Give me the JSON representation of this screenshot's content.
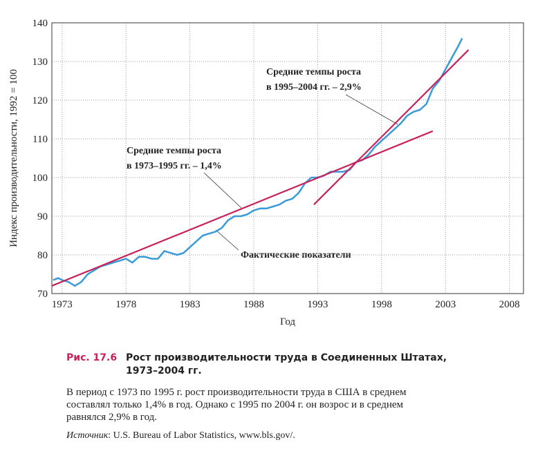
{
  "chart_data": {
    "type": "line",
    "ylabel": "Индекс производительности, 1992 = 100",
    "xlabel": "Год",
    "xlim": [
      1972.2,
      2009.1
    ],
    "xticks": [
      1973,
      1978,
      1983,
      1988,
      1993,
      1998,
      2003,
      2008
    ],
    "ylim": [
      70,
      140
    ],
    "yticks": [
      70,
      80,
      90,
      100,
      110,
      120,
      130,
      140
    ],
    "grid": true,
    "series": [
      {
        "color": "#3a9ad9",
        "x": [
          1972.3,
          1972.7,
          1973,
          1973.5,
          1974,
          1974.5,
          1975,
          1975.5,
          1976,
          1976.5,
          1977,
          1977.5,
          1978,
          1978.5,
          1979,
          1979.5,
          1980,
          1980.5,
          1981,
          1981.5,
          1982,
          1982.5,
          1983,
          1983.5,
          1984,
          1984.5,
          1985,
          1985.5,
          1986,
          1986.5,
          1987,
          1987.5,
          1988,
          1988.5,
          1989,
          1989.5,
          1990,
          1990.5,
          1991,
          1991.5,
          1992,
          1992.5,
          1993,
          1993.5,
          1994,
          1994.5,
          1995,
          1995.5,
          1996,
          1996.5,
          1997,
          1997.5,
          1998,
          1998.5,
          1999,
          1999.5,
          2000,
          2000.5,
          2001,
          2001.5,
          2002,
          2002.5,
          2003,
          2003.5,
          2004,
          2004.3
        ],
        "values": [
          73.5,
          74,
          73.5,
          73,
          72,
          73,
          75,
          76,
          77,
          77.5,
          78,
          78.5,
          79,
          78,
          79.5,
          79.5,
          79,
          79,
          81,
          80.5,
          80,
          80.5,
          82,
          83.5,
          85,
          85.5,
          86,
          87,
          89,
          90,
          90,
          90.5,
          91.5,
          92,
          92,
          92.5,
          93,
          94,
          94.5,
          96,
          98.5,
          100,
          100,
          100.5,
          101.5,
          101.5,
          101.5,
          102,
          104,
          104.5,
          106,
          108,
          109.5,
          111,
          112.5,
          114,
          116,
          117,
          117.5,
          119,
          123,
          125,
          128,
          131,
          134,
          136
        ]
      },
      {
        "color": "#c8215a",
        "x": [
          1972.2,
          2002
        ],
        "values": [
          72,
          112
        ]
      },
      {
        "color": "#c8215a",
        "x": [
          1992.7,
          2004.8
        ],
        "values": [
          93,
          133
        ]
      }
    ],
    "annotations": [
      {
        "lines": [
          "Средние темпы роста",
          "в 1973–1995 гг. – 1,4%"
        ]
      },
      {
        "lines": [
          "Средние темпы роста",
          "в 1995–2004 гг. – 2,9%"
        ]
      },
      {
        "lines": [
          "Фактические показатели"
        ]
      }
    ]
  },
  "figure": {
    "number": "Рис. 17.6",
    "title_lines": [
      "Рост производительности труда в Соединенных Штатах,",
      "1973–2004 гг."
    ],
    "description_lines": [
      "В период с 1973 по 1995 г. рост производительности труда в США в среднем",
      "составлял только 1,4% в год. Однако с 1995 по 2004 г. он возрос и в среднем",
      "равнялся 2,9% в год."
    ],
    "source_label": "Источник",
    "source_text": ": U.S. Bureau of Labor Statistics, www.bls.gov/."
  }
}
